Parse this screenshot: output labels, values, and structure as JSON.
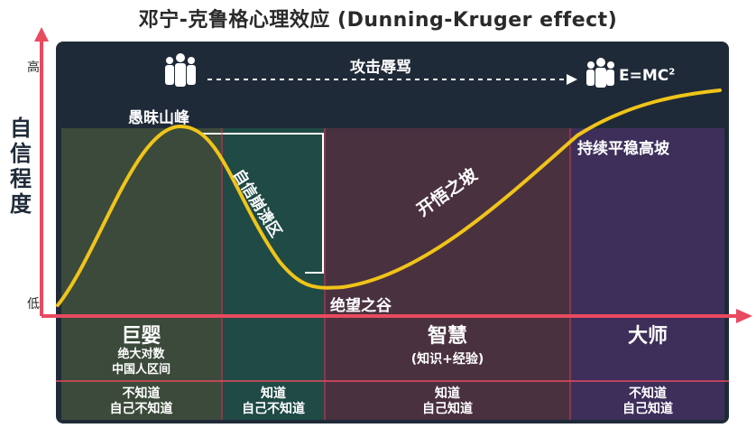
{
  "title": "邓宁-克鲁格心理效应 (Dunning-Kruger effect)",
  "y_axis": {
    "label": [
      "自",
      "信",
      "程",
      "度"
    ],
    "high": "高",
    "low": "低"
  },
  "top_arrow_label": "攻击辱骂",
  "emc_label": "E=MC",
  "emc_superscript": "2",
  "curve_labels": {
    "peak": "愚昧山峰",
    "collapse": "自信崩溃区",
    "slope": "开悟之坡",
    "valley": "绝望之谷",
    "plateau": "持续平稳高坡"
  },
  "stages": [
    {
      "name": "巨婴",
      "sub": "绝大对数\n中国人区间",
      "know": "不知道\n自己不知道",
      "color": "#3b4a3a"
    },
    {
      "name": "",
      "sub": "",
      "know": "知道\n自己不知道",
      "color": "#1f4a46"
    },
    {
      "name": "智慧",
      "sub": "(知识+经验)",
      "know": "知道\n自己知道",
      "color": "#4a3140"
    },
    {
      "name": "大师",
      "sub": "",
      "know": "不知道\n自己知道",
      "color": "#3d2f5a"
    }
  ],
  "colors": {
    "curve": "#f0c419",
    "axis": "#e84a5f",
    "panel": "#1f2a38"
  }
}
